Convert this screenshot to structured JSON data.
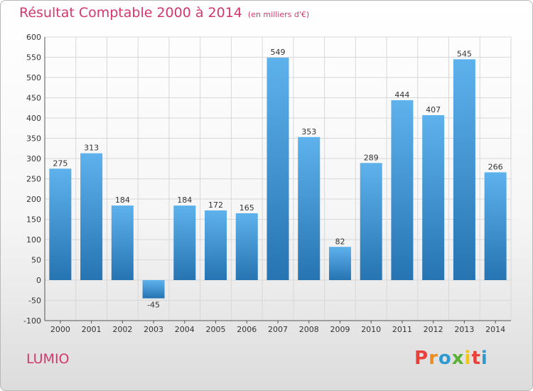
{
  "header": {
    "title": "Résultat Comptable 2000 à 2014",
    "subtitle": "(en milliers d'€)"
  },
  "footer": {
    "place": "LUMIO",
    "logo_letters": [
      "P",
      "r",
      "o",
      "x",
      "i",
      "t",
      "i"
    ],
    "logo_colors": [
      "#e8413c",
      "#f08c1e",
      "#2e9ad0",
      "#5ab134",
      "#f3c614",
      "#e8413c",
      "#2e9ad0"
    ]
  },
  "colors": {
    "title": "#d2386c",
    "bar_top": "#5eb2ec",
    "bar_bottom": "#2674b2",
    "grid": "#d8d8d8",
    "axis": "#555555"
  },
  "chart_data": {
    "type": "bar",
    "title": "Résultat Comptable 2000 à 2014",
    "subtitle": "(en milliers d'€)",
    "xlabel": "",
    "ylabel": "",
    "ylim": [
      -100,
      600
    ],
    "ytick_step": 50,
    "grid": true,
    "categories": [
      "2000",
      "2001",
      "2002",
      "2003",
      "2004",
      "2005",
      "2006",
      "2007",
      "2008",
      "2009",
      "2010",
      "2011",
      "2012",
      "2013",
      "2014"
    ],
    "values": [
      275,
      313,
      184,
      -45,
      184,
      172,
      165,
      549,
      353,
      82,
      289,
      444,
      407,
      545,
      266
    ]
  }
}
